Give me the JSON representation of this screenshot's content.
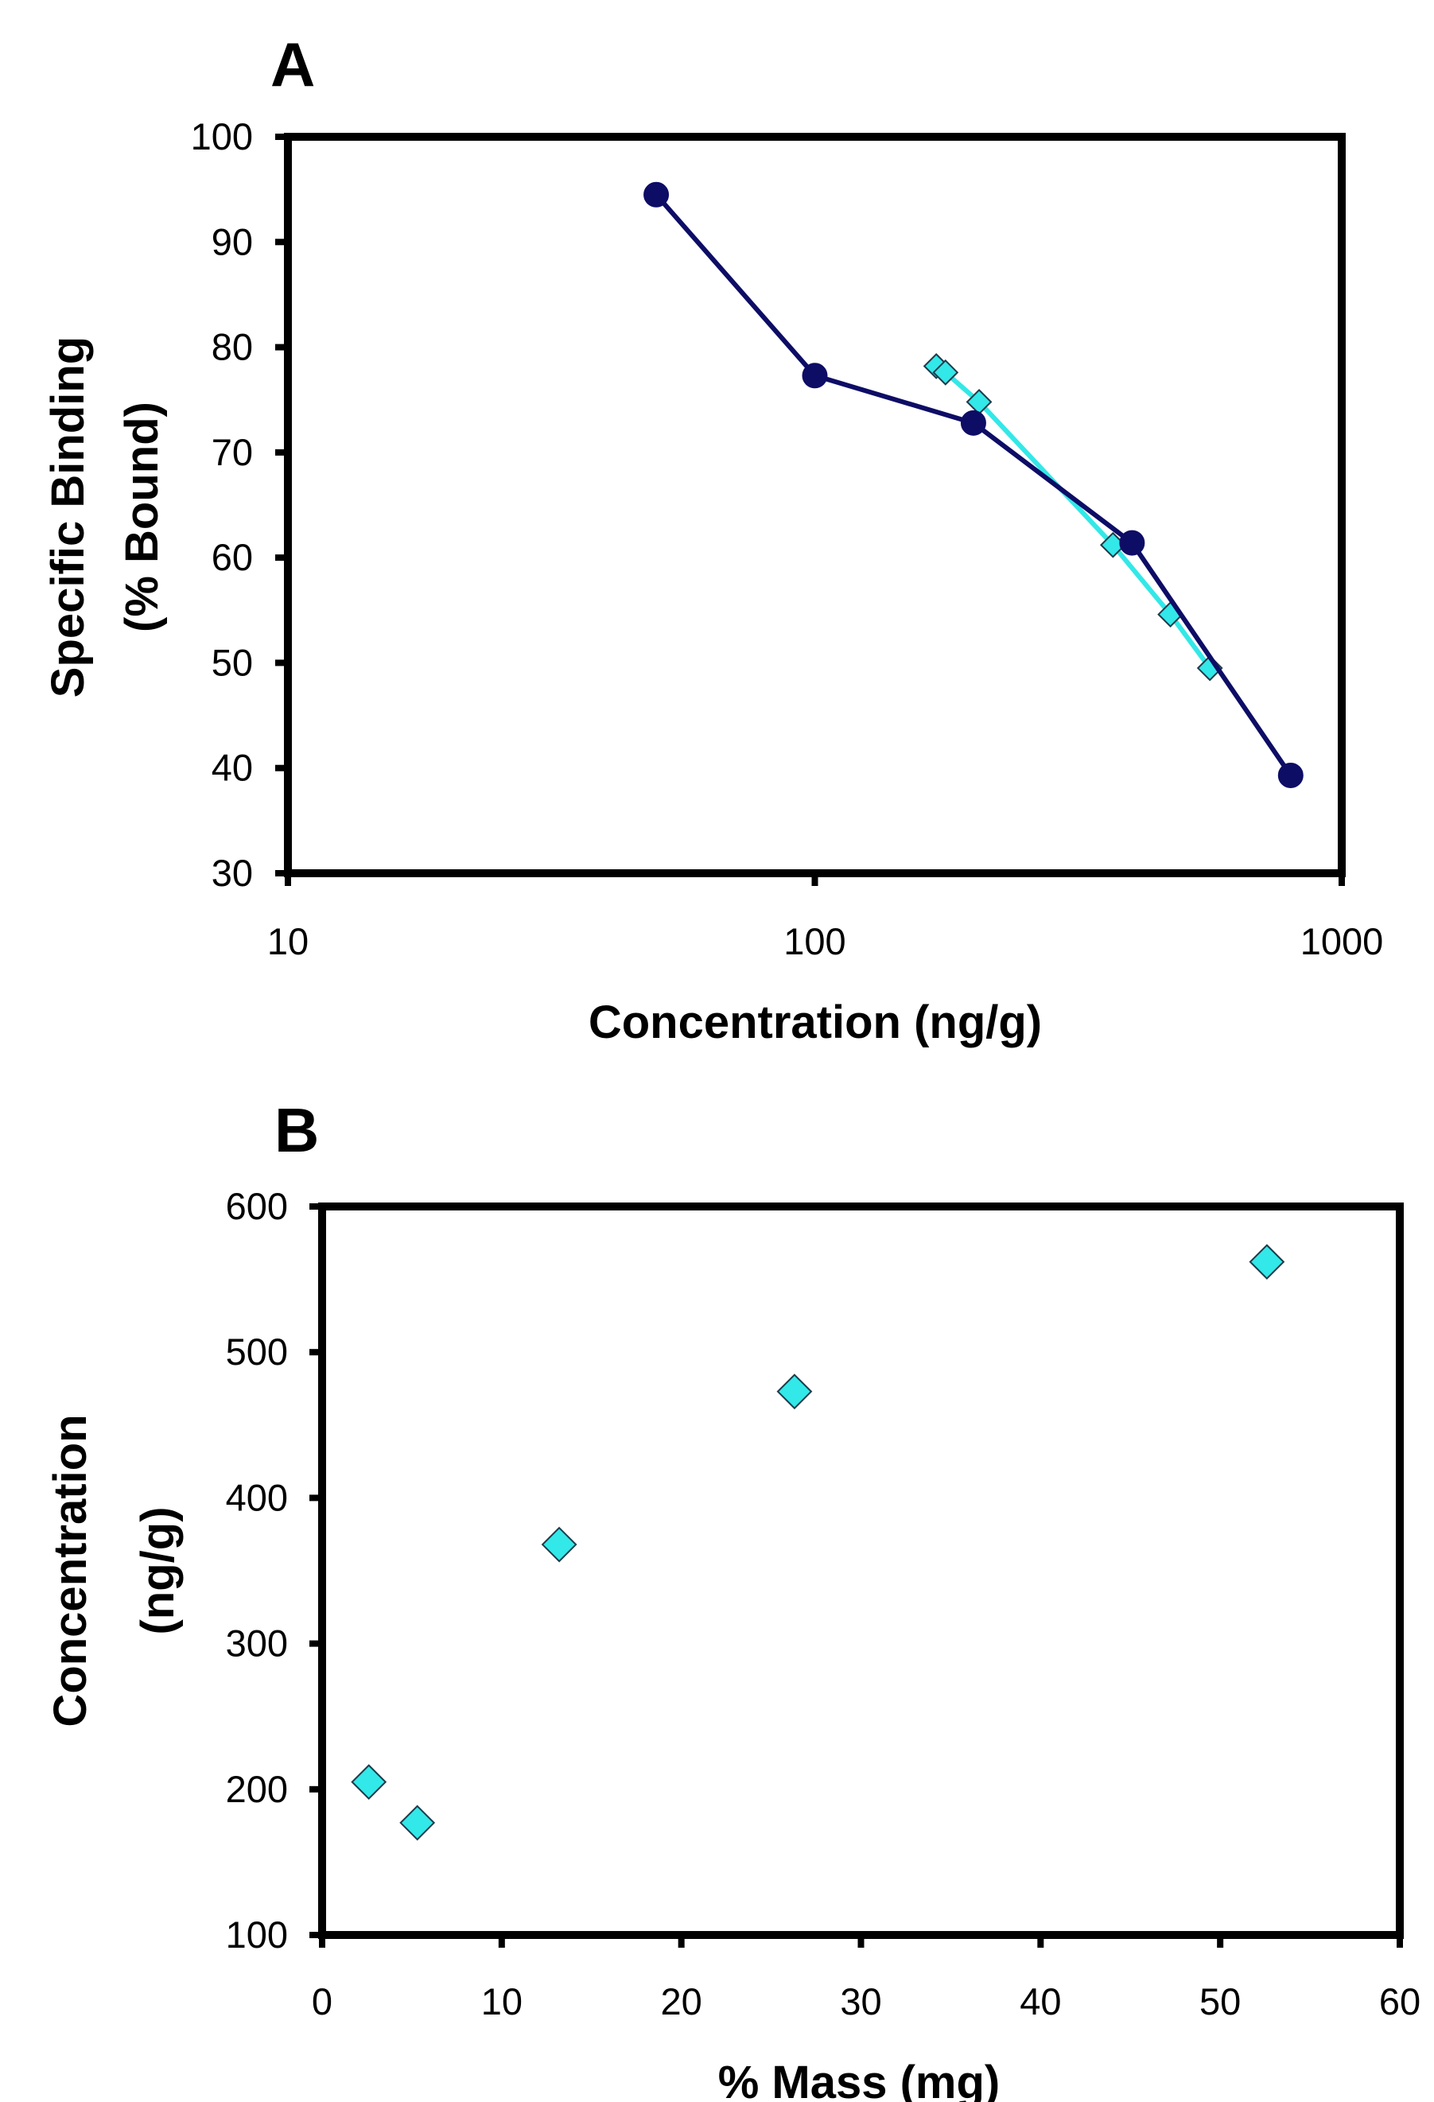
{
  "chart_data": [
    {
      "panel": "A",
      "type": "line",
      "title": "",
      "xlabel": "Concentration (ng/g)",
      "ylabel_lines": [
        "Specific Binding",
        "(% Bound)"
      ],
      "xscale": "log",
      "xlim": [
        10,
        1000
      ],
      "ylim": [
        30,
        100
      ],
      "xticks": [
        "10",
        "100",
        "1000"
      ],
      "yticks": [
        "30",
        "40",
        "50",
        "60",
        "70",
        "80",
        "90",
        "100"
      ],
      "grid": false,
      "legend": "none",
      "series": [
        {
          "marker": "circle",
          "color": "#0d0d66",
          "x": [
            50,
            100,
            200,
            400,
            800
          ],
          "y": [
            94.5,
            77.3,
            72.8,
            61.4,
            39.3
          ]
        },
        {
          "marker": "diamond",
          "color": "#33e8e8",
          "x": [
            170,
            177,
            205,
            368,
            473,
            562
          ],
          "y": [
            78.2,
            77.6,
            74.8,
            61.2,
            54.6,
            49.5
          ]
        }
      ]
    },
    {
      "panel": "B",
      "type": "scatter",
      "title": "",
      "xlabel": "% Mass (mg)",
      "ylabel_lines": [
        "Concentration",
        "(ng/g)"
      ],
      "xscale": "linear",
      "xlim": [
        0,
        60
      ],
      "ylim": [
        100,
        600
      ],
      "xticks": [
        "0",
        "10",
        "20",
        "30",
        "40",
        "50",
        "60"
      ],
      "yticks": [
        "100",
        "200",
        "300",
        "400",
        "500",
        "600"
      ],
      "grid": false,
      "legend": "none",
      "series": [
        {
          "marker": "diamond",
          "color": "#33e8e8",
          "x": [
            2.6,
            5.3,
            13.2,
            26.3,
            52.6
          ],
          "y": [
            205,
            177,
            368,
            473,
            562
          ]
        }
      ]
    }
  ],
  "colors": {
    "axis": "#000000",
    "dark_series": "#0d0d66",
    "cyan_series": "#33e8e8"
  }
}
